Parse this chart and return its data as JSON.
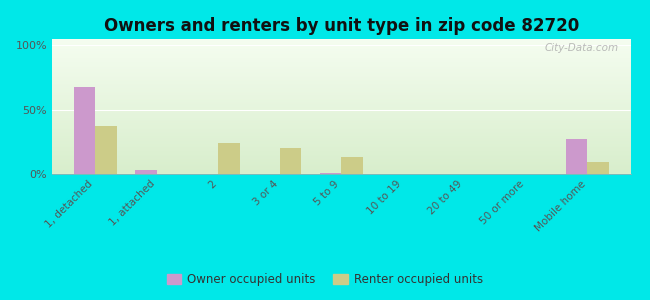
{
  "categories": [
    "1, detached",
    "1, attached",
    "2",
    "3 or 4",
    "5 to 9",
    "10 to 19",
    "20 to 49",
    "50 or more",
    "Mobile home"
  ],
  "owner_values": [
    68,
    3,
    0,
    0,
    1,
    0,
    0,
    0,
    27
  ],
  "renter_values": [
    37,
    0,
    24,
    20,
    13,
    0,
    0,
    0,
    9
  ],
  "owner_color": "#cc99cc",
  "renter_color": "#cccc88",
  "title": "Owners and renters by unit type in zip code 82720",
  "title_fontsize": 12,
  "ylim": [
    0,
    105
  ],
  "yticks": [
    0,
    50,
    100
  ],
  "ytick_labels": [
    "0%",
    "50%",
    "100%"
  ],
  "background_color_fig": "#00e8e8",
  "legend_labels": [
    "Owner occupied units",
    "Renter occupied units"
  ],
  "bar_width": 0.35,
  "watermark": "City-Data.com",
  "gradient_top": "#f5fdf0",
  "gradient_bottom": "#d8eecc"
}
